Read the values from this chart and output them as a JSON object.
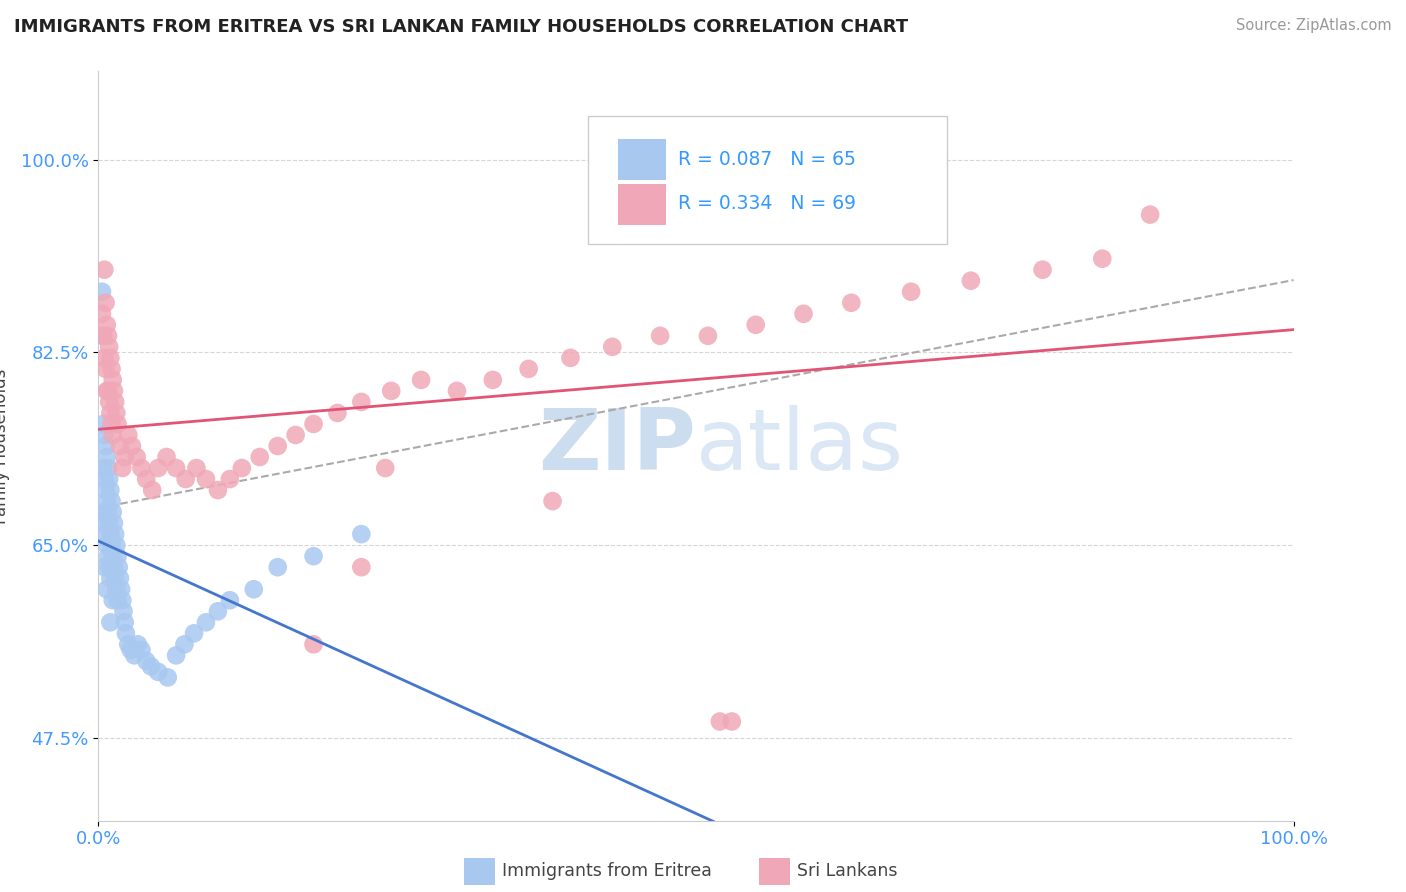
{
  "title": "IMMIGRANTS FROM ERITREA VS SRI LANKAN FAMILY HOUSEHOLDS CORRELATION CHART",
  "source": "Source: ZipAtlas.com",
  "ylabel": "Family Households",
  "x_min": 0.0,
  "x_max": 1.0,
  "y_min": 0.4,
  "y_max": 1.08,
  "y_ticks": [
    0.475,
    0.65,
    0.825,
    1.0
  ],
  "y_tick_labels": [
    "47.5%",
    "65.0%",
    "82.5%",
    "100.0%"
  ],
  "x_ticks": [
    0.0,
    1.0
  ],
  "x_tick_labels": [
    "0.0%",
    "100.0%"
  ],
  "legend_eritrea_label": "Immigrants from Eritrea",
  "legend_srilankan_label": "Sri Lankans",
  "R_eritrea": 0.087,
  "N_eritrea": 65,
  "R_srilankan": 0.334,
  "N_srilankan": 69,
  "eritrea_color": "#a8c8f0",
  "srilankan_color": "#f0a8b8",
  "eritrea_line_color": "#4477cc",
  "srilankan_line_color": "#e05575",
  "trend_line_color": "#aaaaaa",
  "watermark_color": "#ccddf0",
  "background_color": "#ffffff",
  "title_color": "#222222",
  "axis_label_color": "#444444",
  "tick_label_color": "#4499ff",
  "legend_text_color": "#3399ff",
  "eritrea_x": [
    0.003,
    0.003,
    0.004,
    0.004,
    0.004,
    0.005,
    0.005,
    0.005,
    0.005,
    0.006,
    0.006,
    0.006,
    0.007,
    0.007,
    0.007,
    0.007,
    0.008,
    0.008,
    0.008,
    0.009,
    0.009,
    0.009,
    0.01,
    0.01,
    0.01,
    0.01,
    0.011,
    0.011,
    0.012,
    0.012,
    0.012,
    0.013,
    0.013,
    0.014,
    0.014,
    0.015,
    0.015,
    0.016,
    0.016,
    0.017,
    0.018,
    0.019,
    0.02,
    0.021,
    0.022,
    0.023,
    0.025,
    0.027,
    0.03,
    0.033,
    0.036,
    0.04,
    0.044,
    0.05,
    0.058,
    0.065,
    0.072,
    0.08,
    0.09,
    0.1,
    0.11,
    0.13,
    0.15,
    0.18,
    0.22
  ],
  "eritrea_y": [
    0.88,
    0.84,
    0.76,
    0.72,
    0.68,
    0.75,
    0.71,
    0.67,
    0.63,
    0.74,
    0.7,
    0.66,
    0.73,
    0.69,
    0.65,
    0.61,
    0.72,
    0.68,
    0.64,
    0.71,
    0.67,
    0.63,
    0.7,
    0.66,
    0.62,
    0.58,
    0.69,
    0.65,
    0.68,
    0.64,
    0.6,
    0.67,
    0.63,
    0.66,
    0.62,
    0.65,
    0.61,
    0.64,
    0.6,
    0.63,
    0.62,
    0.61,
    0.6,
    0.59,
    0.58,
    0.57,
    0.56,
    0.555,
    0.55,
    0.56,
    0.555,
    0.545,
    0.54,
    0.535,
    0.53,
    0.55,
    0.56,
    0.57,
    0.58,
    0.59,
    0.6,
    0.61,
    0.63,
    0.64,
    0.66
  ],
  "srilankan_x": [
    0.003,
    0.004,
    0.005,
    0.005,
    0.006,
    0.006,
    0.007,
    0.007,
    0.008,
    0.008,
    0.009,
    0.009,
    0.01,
    0.01,
    0.011,
    0.011,
    0.012,
    0.012,
    0.013,
    0.014,
    0.015,
    0.016,
    0.018,
    0.02,
    0.022,
    0.025,
    0.028,
    0.032,
    0.036,
    0.04,
    0.045,
    0.05,
    0.057,
    0.065,
    0.073,
    0.082,
    0.09,
    0.1,
    0.11,
    0.12,
    0.135,
    0.15,
    0.165,
    0.18,
    0.2,
    0.22,
    0.245,
    0.27,
    0.3,
    0.33,
    0.36,
    0.395,
    0.43,
    0.47,
    0.51,
    0.55,
    0.59,
    0.63,
    0.68,
    0.73,
    0.79,
    0.84,
    0.88,
    0.53,
    0.22,
    0.18,
    0.24,
    0.38,
    0.52
  ],
  "srilankan_y": [
    0.86,
    0.84,
    0.9,
    0.82,
    0.87,
    0.81,
    0.85,
    0.79,
    0.84,
    0.79,
    0.83,
    0.78,
    0.82,
    0.77,
    0.81,
    0.76,
    0.8,
    0.75,
    0.79,
    0.78,
    0.77,
    0.76,
    0.74,
    0.72,
    0.73,
    0.75,
    0.74,
    0.73,
    0.72,
    0.71,
    0.7,
    0.72,
    0.73,
    0.72,
    0.71,
    0.72,
    0.71,
    0.7,
    0.71,
    0.72,
    0.73,
    0.74,
    0.75,
    0.76,
    0.77,
    0.78,
    0.79,
    0.8,
    0.79,
    0.8,
    0.81,
    0.82,
    0.83,
    0.84,
    0.84,
    0.85,
    0.86,
    0.87,
    0.88,
    0.89,
    0.9,
    0.91,
    0.95,
    0.49,
    0.63,
    0.56,
    0.72,
    0.69,
    0.49
  ]
}
